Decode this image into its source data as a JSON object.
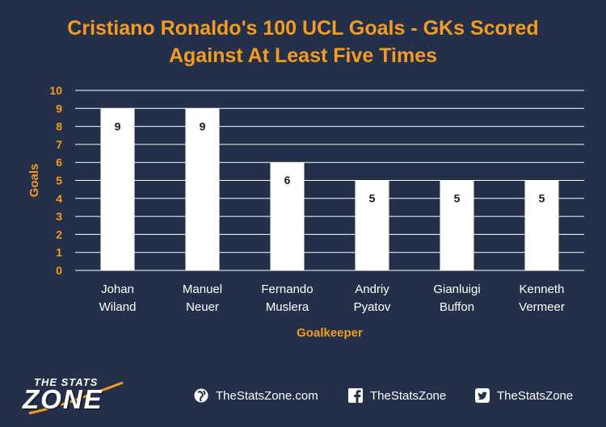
{
  "chart_data": {
    "type": "bar",
    "title_lines": [
      "Cristiano Ronaldo's 100 UCL Goals - GKs Scored",
      "Against At Least Five Times"
    ],
    "categories": [
      [
        "Johan",
        "Wiland"
      ],
      [
        "Manuel",
        "Neuer"
      ],
      [
        "Fernando",
        "Muslera"
      ],
      [
        "Andriy",
        "Pyatov"
      ],
      [
        "Gianluigi",
        "Buffon"
      ],
      [
        "Kenneth",
        "Vermeer"
      ]
    ],
    "values": [
      9,
      9,
      6,
      5,
      5,
      5
    ],
    "data_labels": [
      "9",
      "9",
      "6",
      "5",
      "5",
      "5"
    ],
    "xlabel": "Goalkeeper",
    "ylabel": "Goals",
    "ylim": [
      0,
      10
    ],
    "yticks": [
      "0",
      "1",
      "2",
      "3",
      "4",
      "5",
      "6",
      "7",
      "8",
      "9",
      "10"
    ],
    "grid": true,
    "legend": "none",
    "colors": {
      "background": "#243049",
      "bar": "#ffffff",
      "title": "#f39c1f",
      "axis_text": "#f39c1f",
      "category_text": "#ffffff",
      "gridline": "#ffffff"
    }
  },
  "footer": {
    "logo_small": "THE STATS",
    "logo_big": "ZONE",
    "website": "TheStatsZone.com",
    "facebook": "TheStatsZone",
    "twitter": "TheStatsZone"
  }
}
